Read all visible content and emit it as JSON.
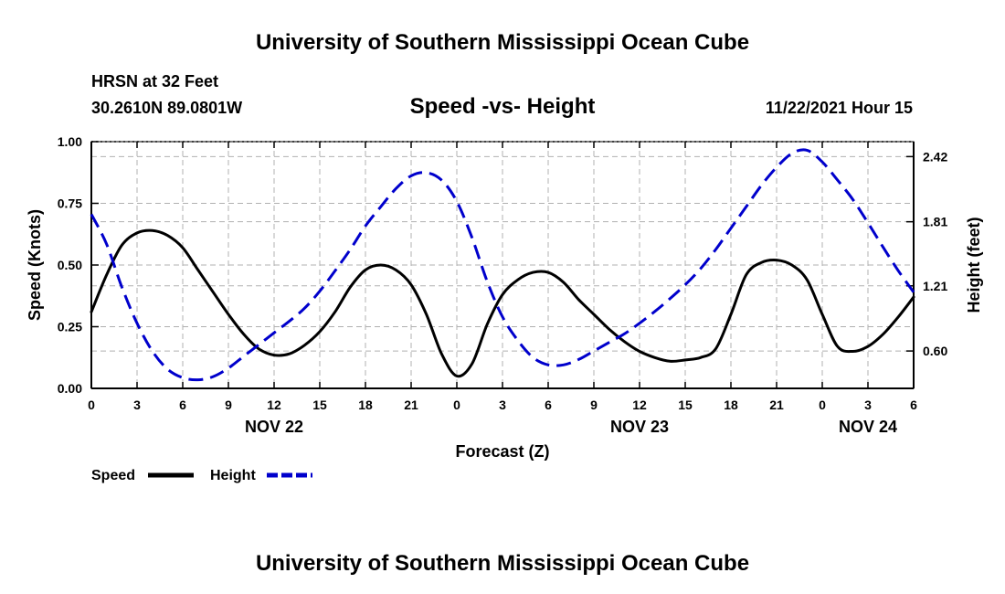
{
  "header": {
    "title": "University of Southern Mississippi Ocean Cube",
    "station": "HRSN at 32 Feet",
    "location": "30.2610N  89.0801W",
    "issued": "11/22/2021 Hour 15",
    "footer_title": "University of Southern Mississippi Ocean Cube"
  },
  "chart_data": {
    "type": "line",
    "title": "Speed -vs- Height",
    "xlabel": "Forecast (Z)",
    "ylabel_left": "Speed (Knots)",
    "ylabel_right": "Height (feet)",
    "x_unit": "forecast hours from NOV 22 00Z",
    "xlim": [
      0,
      54
    ],
    "x_ticks": [
      0,
      3,
      6,
      9,
      12,
      15,
      18,
      21,
      24,
      27,
      30,
      33,
      36,
      39,
      42,
      45,
      48,
      51,
      54
    ],
    "x_tick_labels": [
      "0",
      "3",
      "6",
      "9",
      "12",
      "15",
      "18",
      "21",
      "0",
      "3",
      "6",
      "9",
      "12",
      "15",
      "18",
      "21",
      "0",
      "3",
      "6"
    ],
    "day_labels": [
      {
        "label": "NOV 22",
        "x": 12
      },
      {
        "label": "NOV 23",
        "x": 36
      },
      {
        "label": "NOV 24",
        "x": 51
      }
    ],
    "ylim_left": [
      0,
      1
    ],
    "y_ticks_left": [
      0,
      0.25,
      0.5,
      0.75,
      1.0
    ],
    "y_tick_labels_left": [
      "0.00",
      "0.25",
      "0.50",
      "0.75",
      "1.00"
    ],
    "ylim_right": [
      0.25,
      2.56
    ],
    "y_ticks_right": [
      0.6,
      1.21,
      1.81,
      2.42
    ],
    "y_tick_labels_right": [
      "0.60",
      "1.21",
      "1.81",
      "2.42"
    ],
    "grid": true,
    "legend_position": "bottom-left",
    "series": [
      {
        "name": "Speed",
        "axis": "left",
        "color": "#000000",
        "dash": "solid",
        "points": [
          [
            0,
            0.31
          ],
          [
            1,
            0.46
          ],
          [
            2,
            0.58
          ],
          [
            3,
            0.63
          ],
          [
            4,
            0.64
          ],
          [
            5,
            0.62
          ],
          [
            6,
            0.57
          ],
          [
            7,
            0.48
          ],
          [
            8,
            0.39
          ],
          [
            9,
            0.3
          ],
          [
            10,
            0.22
          ],
          [
            11,
            0.16
          ],
          [
            12,
            0.135
          ],
          [
            13,
            0.14
          ],
          [
            14,
            0.175
          ],
          [
            15,
            0.23
          ],
          [
            16,
            0.31
          ],
          [
            17,
            0.41
          ],
          [
            18,
            0.48
          ],
          [
            19,
            0.5
          ],
          [
            20,
            0.48
          ],
          [
            21,
            0.42
          ],
          [
            22,
            0.3
          ],
          [
            23,
            0.14
          ],
          [
            24,
            0.05
          ],
          [
            25,
            0.1
          ],
          [
            26,
            0.26
          ],
          [
            27,
            0.38
          ],
          [
            28,
            0.44
          ],
          [
            29,
            0.47
          ],
          [
            30,
            0.47
          ],
          [
            31,
            0.43
          ],
          [
            32,
            0.36
          ],
          [
            33,
            0.3
          ],
          [
            34,
            0.24
          ],
          [
            35,
            0.19
          ],
          [
            36,
            0.15
          ],
          [
            37,
            0.125
          ],
          [
            38,
            0.11
          ],
          [
            39,
            0.115
          ],
          [
            40,
            0.125
          ],
          [
            41,
            0.16
          ],
          [
            42,
            0.3
          ],
          [
            43,
            0.46
          ],
          [
            44,
            0.51
          ],
          [
            45,
            0.52
          ],
          [
            46,
            0.5
          ],
          [
            47,
            0.44
          ],
          [
            48,
            0.3
          ],
          [
            49,
            0.17
          ],
          [
            50,
            0.15
          ],
          [
            51,
            0.17
          ],
          [
            52,
            0.22
          ],
          [
            53,
            0.29
          ],
          [
            54,
            0.37
          ]
        ]
      },
      {
        "name": "Height",
        "axis": "right",
        "color": "#0000cc",
        "dash": "dashed",
        "points": [
          [
            0,
            1.88
          ],
          [
            1,
            1.6
          ],
          [
            2,
            1.2
          ],
          [
            3,
            0.86
          ],
          [
            4,
            0.6
          ],
          [
            5,
            0.43
          ],
          [
            6,
            0.35
          ],
          [
            7,
            0.33
          ],
          [
            8,
            0.36
          ],
          [
            9,
            0.44
          ],
          [
            10,
            0.55
          ],
          [
            11,
            0.66
          ],
          [
            12,
            0.77
          ],
          [
            13,
            0.88
          ],
          [
            14,
            1.0
          ],
          [
            15,
            1.16
          ],
          [
            16,
            1.35
          ],
          [
            17,
            1.55
          ],
          [
            18,
            1.77
          ],
          [
            19,
            1.95
          ],
          [
            20,
            2.12
          ],
          [
            21,
            2.24
          ],
          [
            22,
            2.27
          ],
          [
            23,
            2.2
          ],
          [
            24,
            2.0
          ],
          [
            25,
            1.66
          ],
          [
            26,
            1.25
          ],
          [
            27,
            0.92
          ],
          [
            28,
            0.7
          ],
          [
            29,
            0.54
          ],
          [
            30,
            0.47
          ],
          [
            31,
            0.47
          ],
          [
            32,
            0.52
          ],
          [
            33,
            0.6
          ],
          [
            34,
            0.68
          ],
          [
            35,
            0.76
          ],
          [
            36,
            0.86
          ],
          [
            37,
            0.97
          ],
          [
            38,
            1.09
          ],
          [
            39,
            1.22
          ],
          [
            40,
            1.37
          ],
          [
            41,
            1.55
          ],
          [
            42,
            1.75
          ],
          [
            43,
            1.95
          ],
          [
            44,
            2.15
          ],
          [
            45,
            2.32
          ],
          [
            46,
            2.45
          ],
          [
            47,
            2.48
          ],
          [
            48,
            2.37
          ],
          [
            49,
            2.2
          ],
          [
            50,
            2.02
          ],
          [
            51,
            1.8
          ],
          [
            52,
            1.57
          ],
          [
            53,
            1.35
          ],
          [
            54,
            1.15
          ]
        ]
      }
    ]
  }
}
